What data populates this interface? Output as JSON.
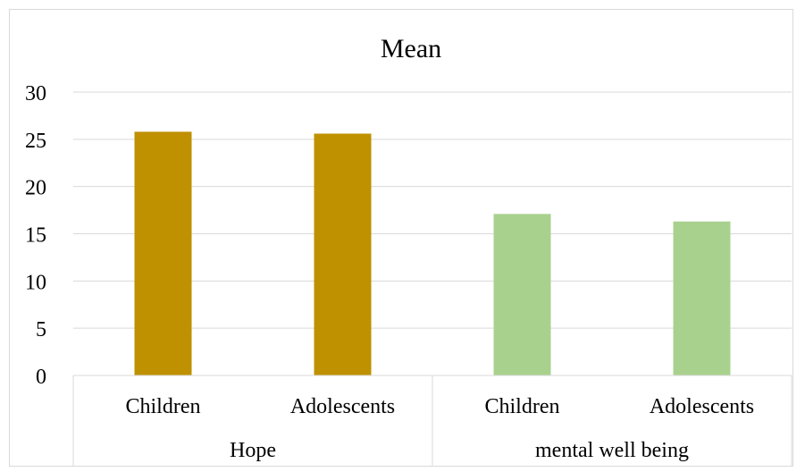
{
  "chart_data": {
    "type": "bar",
    "title": "Mean",
    "xlabel": "",
    "ylabel": "",
    "ylim": [
      0,
      30
    ],
    "yticks": [
      0,
      5,
      10,
      15,
      20,
      25,
      30
    ],
    "grid": true,
    "legend": "none",
    "groups": [
      {
        "label": "Hope",
        "color": "#BF9000",
        "bars": [
          {
            "category": "Children",
            "value": 25.8
          },
          {
            "category": "Adolescents",
            "value": 25.6
          }
        ]
      },
      {
        "label": "mental well being",
        "color": "#A9D18E",
        "bars": [
          {
            "category": "Children",
            "value": 17.1
          },
          {
            "category": "Adolescents",
            "value": 16.3
          }
        ]
      }
    ]
  }
}
